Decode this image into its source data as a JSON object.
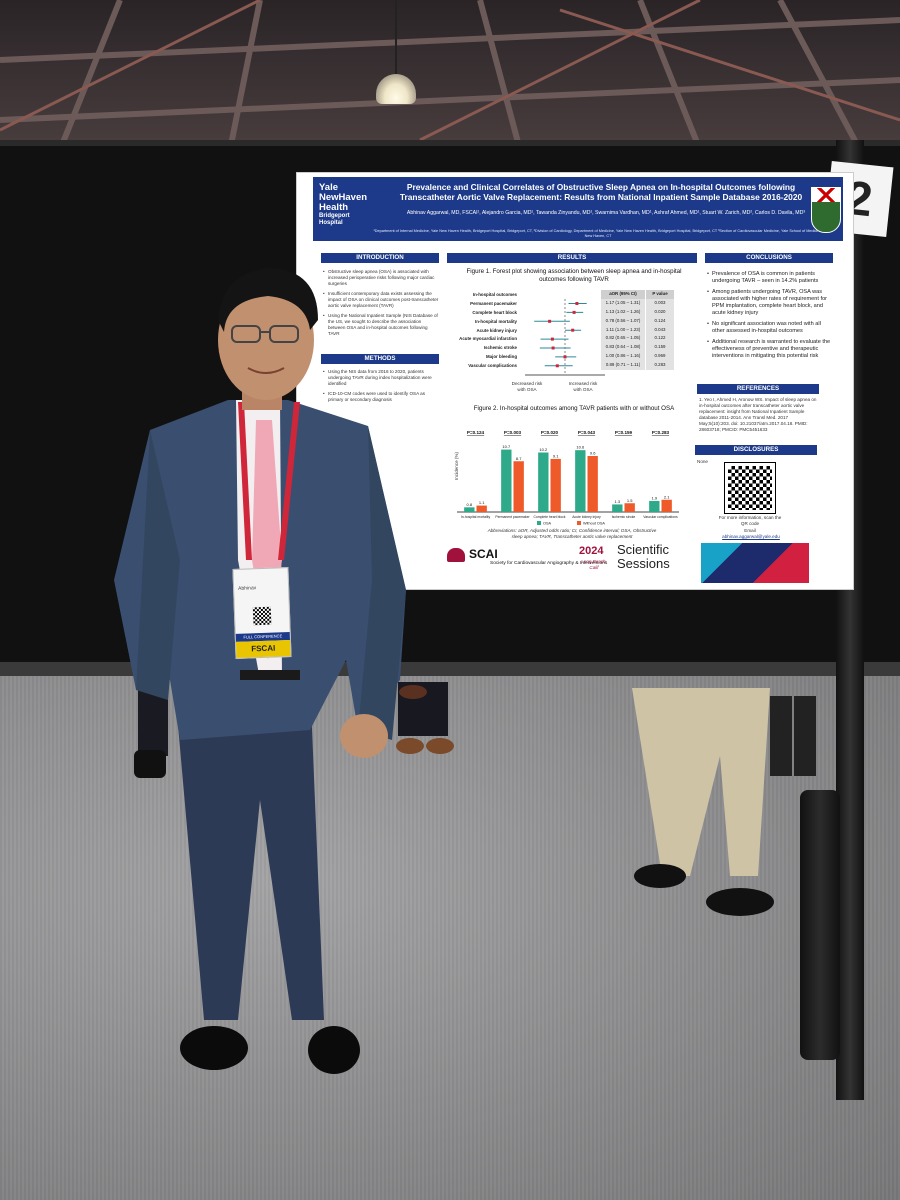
{
  "poster": {
    "logo": {
      "line1": "Yale",
      "line2": "NewHaven",
      "line3": "Health",
      "line4": "Bridgeport",
      "line5": "Hospital"
    },
    "title": "Prevalence and Clinical Correlates of Obstructive Sleep Apnea on In-hospital Outcomes following Transcatheter Aortic Valve Replacement: Results from National Inpatient Sample Database 2016-2020",
    "authors": "Abhinav Aggarwal, MD, FSCAI¹, Alejandro Garcia, MD¹, Tawanda Zinyandu, MD¹, Swarnima Vardhan, MD¹, Ashraf Ahmed, MD¹, Stuart W. Zarich, MD², Carlos D. Davila, MD³",
    "affiliations": "¹Department of Internal Medicine, Yale New Haven Health, Bridgeport Hospital, Bridgeport, CT, ²Division of Cardiology, Department of Medicine, Yale New Haven Health, Bridgeport Hospital, Bridgeport, CT ³Section of Cardiovascular Medicine, Yale School of Medicine, New Haven, CT",
    "sections": {
      "introduction": "INTRODUCTION",
      "methods": "METHODS",
      "results": "RESULTS",
      "conclusions": "CONCLUSIONS",
      "references": "REFERENCES",
      "disclosures": "DISCLOSURES"
    },
    "introduction_items": [
      "Obstructive sleep apnea (OSA) is associated with increased perioperative risks following major cardiac surgeries",
      "Insufficient contemporary data exists assessing the impact of OSA on clinical outcomes post-transcatheter aortic valve replacement (TAVR)",
      "Using the National Inpatient Sample (NIS Database of the US, we sought to describe the association between OSA and in-hospital outcomes following TAVR"
    ],
    "methods_items": [
      "Using the NIS data from 2016 to 2020, patients undergoing TAVR during index hospitalization were identified",
      "ICD-10-CM codes were used to identify OSA as primary or secondary diagnosis"
    ],
    "figure1_title": "Figure 1. Forest plot showing association between sleep apnea and in-hospital outcomes following TAVR",
    "forest": {
      "header_label": "In-hospital outcomes",
      "header_aor": "aOR (95% CI)",
      "header_p": "P value",
      "rows": [
        {
          "label": "Permanent pacemaker",
          "aor": "1.17 (1.05 – 1.31)",
          "p": "0.003"
        },
        {
          "label": "Complete heart block",
          "aor": "1.13 (1.02 – 1.26)",
          "p": "0.020"
        },
        {
          "label": "In-hospital mortality",
          "aor": "0.78 (0.56 – 1.07)",
          "p": "0.124"
        },
        {
          "label": "Acute kidney injury",
          "aor": "1.11 (1.00 – 1.23)",
          "p": "0.043"
        },
        {
          "label": "Acute myocardial infarction",
          "aor": "0.82 (0.65 – 1.05)",
          "p": "0.122"
        },
        {
          "label": "Ischemic stroke",
          "aor": "0.83 (0.64 – 1.08)",
          "p": "0.159"
        },
        {
          "label": "Major bleeding",
          "aor": "1.00 (0.86 – 1.16)",
          "p": "0.969"
        },
        {
          "label": "Vascular complications",
          "aor": "0.89 (0.71 – 1.11)",
          "p": "0.283"
        }
      ],
      "axis_left": "Decreased risk with OSA",
      "axis_right": "Increased risk with OSA"
    },
    "figure2_title": "Figure 2. In-hospital outcomes among TAVR patients with or without OSA",
    "bar_ylabel": "Incidence (%)",
    "bar_pvalues": [
      "P=0.124",
      "P=0.003",
      "P=0.020",
      "P=0.043",
      "P=0.159",
      "P=0.283"
    ],
    "bar_categories": [
      "In-hospital mortality",
      "Permanent pacemaker",
      "Complete heart block",
      "Acute kidney injury",
      "Ischemic stroke",
      "Vascular complications"
    ],
    "bar_legend": {
      "a": "OSA",
      "b": "Without OSA"
    },
    "bar_colors": {
      "a": "#2eaa8a",
      "b": "#ef5a2a"
    },
    "abbrev": "Abbreviations: aOR, Adjusted odds ratio; CI, Confidence interval; OSA, Obstructive sleep apnea; TAVR, Transcatheter aortic valve replacement",
    "conclusion_items": [
      "Prevalence of OSA is common in patients undergoing TAVR – seen in 14.2% patients",
      "Among patients undergoing TAVR, OSA was associated with higher rates of requirement for PPM implantation, complete heart block, and acute kidney injury",
      "No significant association was noted with all other assessed in-hospital outcomes",
      "Additional research is warranted to evaluate the effectiveness of preventive and therapeutic interventions in mitigating this potential risk"
    ],
    "reference": "1. Yeo I, Ahmed H, Aronow WS. Impact of sleep apnea on in-hospital outcomes after transcatheter aortic valve replacement: insight from National Inpatient Sample database 2011-2014. Ann Transl Med. 2017 May;5(10):203. doi: 10.21037/atm.2017.04.18. PMID: 28603718; PMCID: PMC5451633",
    "disclosure": "None",
    "qr_caption": "For more information, scan the QR code",
    "email_label": "Email",
    "email": "abhinav.aggarwal@yale.edu",
    "footer": {
      "scai": "SCAI",
      "scai_sub": "Society for Cardiovascular Angiography & Interventions",
      "year": "2024",
      "city": "Long Beach, Calif",
      "sessions": "Scientific Sessions"
    }
  },
  "badge": {
    "tag": "FSCAI",
    "conf": "FULL CONFERENCE",
    "name": "Abhinav"
  },
  "sign": "2",
  "chart_data": {
    "type": "bar",
    "categories": [
      "In-hospital mortality",
      "Permanent pacemaker",
      "Complete heart block",
      "Acute kidney injury",
      "Ischemic stroke",
      "Vascular complications"
    ],
    "series": [
      {
        "name": "OSA",
        "values": [
          0.8,
          10.7,
          10.2,
          10.6,
          1.3,
          1.9
        ]
      },
      {
        "name": "Without OSA",
        "values": [
          1.1,
          8.7,
          9.1,
          9.6,
          1.5,
          2.1
        ]
      }
    ],
    "ylabel": "Incidence (%)",
    "ylim": [
      0,
      12
    ]
  }
}
